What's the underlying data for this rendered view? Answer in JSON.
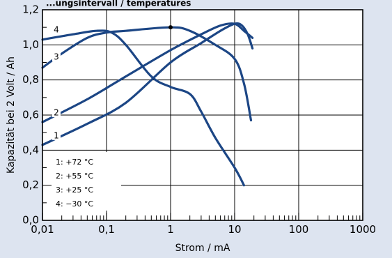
{
  "colors": {
    "background": "#dde4f0",
    "plot_background": "#ffffff",
    "curve": "#1c4685",
    "grid": "#000000"
  },
  "chart_data": {
    "type": "line",
    "title": "...ungsintervall / temperatures",
    "xlabel": "Strom / mA",
    "ylabel": "Kapazität bei 2 Volt / Ah",
    "xscale": "log",
    "xlim": [
      0.01,
      1000
    ],
    "ylim": [
      0,
      1.2
    ],
    "x_ticks": [
      {
        "value": 0.01,
        "label": "0,01"
      },
      {
        "value": 0.1,
        "label": "0,1"
      },
      {
        "value": 1,
        "label": "1"
      },
      {
        "value": 10,
        "label": "10"
      },
      {
        "value": 100,
        "label": "100"
      },
      {
        "value": 1000,
        "label": "1000"
      }
    ],
    "y_ticks": [
      {
        "value": 0,
        "label": "0,0"
      },
      {
        "value": 0.2,
        "label": "0,2"
      },
      {
        "value": 0.4,
        "label": "0,4"
      },
      {
        "value": 0.6,
        "label": "0,6"
      },
      {
        "value": 0.8,
        "label": "0,8"
      },
      {
        "value": 1.0,
        "label": "1,0"
      },
      {
        "value": 1.2,
        "label": "1,2"
      }
    ],
    "grid": true,
    "series": [
      {
        "name": "1: +72 °C",
        "label": "1",
        "x": [
          0.01,
          0.05,
          0.2,
          1,
          3,
          6,
          10,
          13,
          16,
          19
        ],
        "y": [
          0.43,
          0.55,
          0.67,
          0.9,
          1.01,
          1.08,
          1.12,
          1.11,
          1.06,
          0.98
        ]
      },
      {
        "name": "2: +55 °C",
        "label": "2",
        "x": [
          0.01,
          0.05,
          0.2,
          1,
          3,
          6,
          10,
          14,
          19
        ],
        "y": [
          0.56,
          0.69,
          0.82,
          0.97,
          1.06,
          1.11,
          1.12,
          1.08,
          1.04
        ]
      },
      {
        "name": "3: +25 °C",
        "label": "3",
        "x": [
          0.01,
          0.02,
          0.05,
          0.1,
          0.2,
          1,
          2,
          5,
          10,
          14,
          18
        ],
        "y": [
          0.87,
          0.95,
          1.04,
          1.07,
          1.08,
          1.1,
          1.08,
          1.0,
          0.92,
          0.78,
          0.57
        ]
      },
      {
        "name": "4: −30 °C",
        "label": "4",
        "x": [
          0.01,
          0.03,
          0.07,
          0.12,
          0.2,
          0.5,
          1,
          2,
          3,
          5,
          10,
          14
        ],
        "y": [
          1.03,
          1.06,
          1.08,
          1.07,
          1.0,
          0.82,
          0.76,
          0.72,
          0.62,
          0.47,
          0.3,
          0.2
        ]
      }
    ],
    "marker": {
      "x": 1,
      "y": 1.1
    },
    "legend": {
      "position": "bottom-left",
      "items": [
        "1:  +72 °C",
        "2:  +55 °C",
        "3:  +25 °C",
        "4:  −30 °C"
      ]
    }
  }
}
